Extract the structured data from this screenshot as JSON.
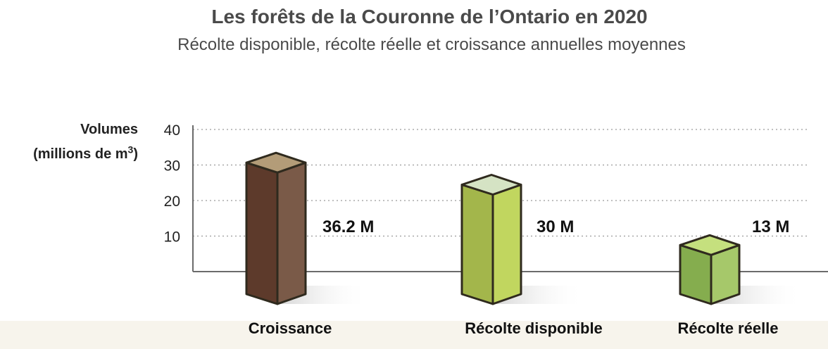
{
  "header": {
    "title": "Les forêts de la Couronne de l’Ontario en 2020",
    "subtitle": "Récolte disponible, récolte réelle et croissance annuelles moyennes"
  },
  "y_axis": {
    "label_line1": "Volumes",
    "label_line2": "(millions de m",
    "label_sup": "3",
    "label_close": ")"
  },
  "chart_data": {
    "type": "bar",
    "title": "Les forêts de la Couronne de l’Ontario en 2020",
    "subtitle": "Récolte disponible, récolte réelle et croissance annuelles moyennes",
    "ylabel": "Volumes (millions de m³)",
    "xlabel": "",
    "ylim": [
      0,
      40
    ],
    "yticks": [
      10,
      20,
      30,
      40
    ],
    "grid": true,
    "categories": [
      "Croissance",
      "Récolte disponible",
      "Récolte réelle"
    ],
    "values": [
      36.2,
      30,
      13
    ],
    "data_labels": [
      "36.2 M",
      "30 M",
      "13 M"
    ],
    "colors": [
      {
        "front": "#5d3a2b",
        "side": "#7a5a48",
        "top": "#b39c78"
      },
      {
        "front": "#a3b64b",
        "side": "#c1d65f",
        "top": "#d5e3c4"
      },
      {
        "front": "#85ad4e",
        "side": "#a6c86a",
        "top": "#c5e07e"
      }
    ]
  }
}
